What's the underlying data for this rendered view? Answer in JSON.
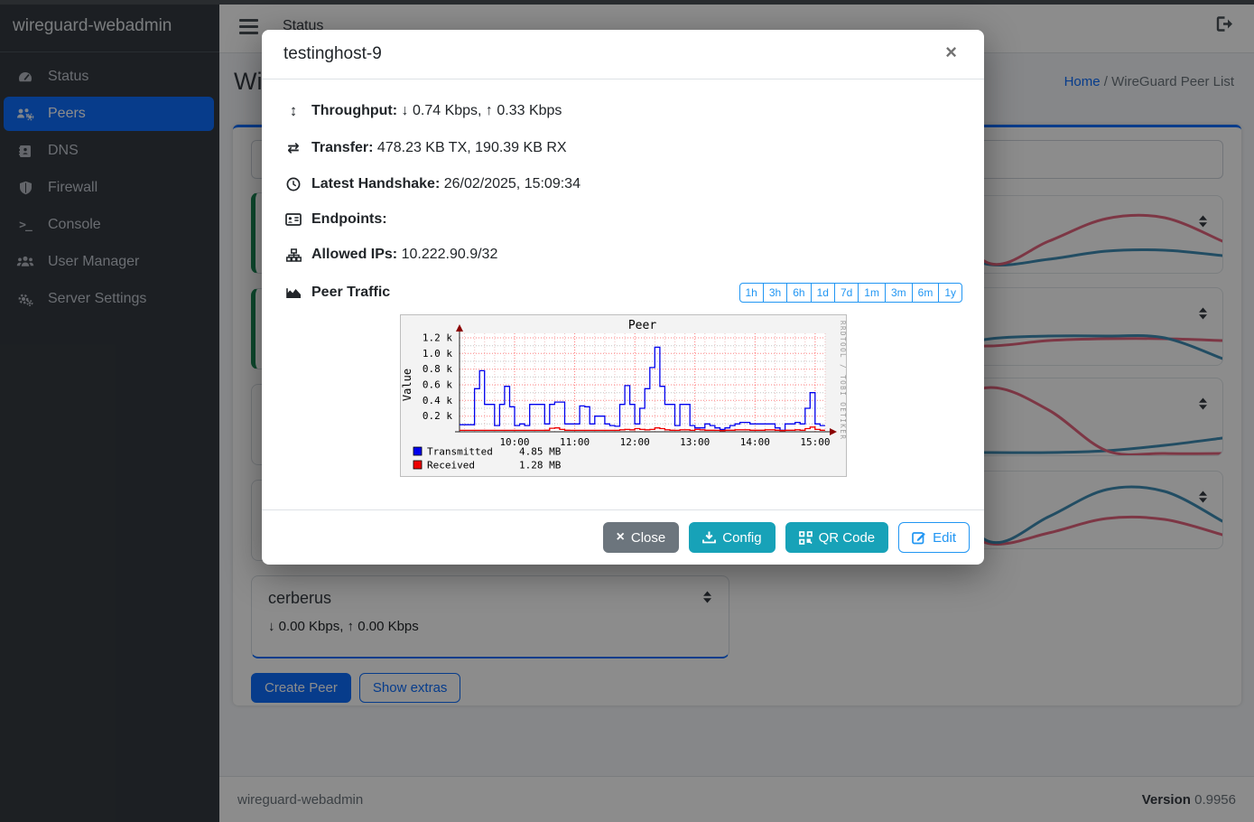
{
  "sidebar": {
    "brand": "wireguard-webadmin",
    "items": [
      {
        "label": "Status",
        "icon": "gauge-icon",
        "active": false
      },
      {
        "label": "Peers",
        "icon": "users-gear-icon",
        "active": true
      },
      {
        "label": "DNS",
        "icon": "address-book-icon",
        "active": false
      },
      {
        "label": "Firewall",
        "icon": "shield-icon",
        "active": false
      },
      {
        "label": "Console",
        "icon": "terminal-icon",
        "active": false
      },
      {
        "label": "User Manager",
        "icon": "users-icon",
        "active": false
      },
      {
        "label": "Server Settings",
        "icon": "gears-icon",
        "active": false
      }
    ]
  },
  "navbar": {
    "menu_item": "Status"
  },
  "page_header": {
    "title": "WireGuard Peers",
    "breadcrumb_home": "Home",
    "breadcrumb_sep": "/",
    "breadcrumb_current": "WireGuard Peer List"
  },
  "peer_list": {
    "cerberus_name": "cerberus",
    "cerberus_throughput": "↓ 0.00 Kbps, ↑ 0.00 Kbps",
    "create_peer_label": "Create Peer",
    "show_extras_label": "Show extras"
  },
  "modal": {
    "title": "testinghost-9",
    "close_glyph": "×",
    "info_rows": [
      {
        "icon": "arrows-up-down-icon",
        "label": "Throughput:",
        "value": "↓ 0.74 Kbps, ↑ 0.33 Kbps"
      },
      {
        "icon": "transfer-icon",
        "label": "Transfer:",
        "value": "478.23 KB TX, 190.39 KB RX"
      },
      {
        "icon": "clock-icon",
        "label": "Latest Handshake:",
        "value": "26/02/2025, 15:09:34"
      },
      {
        "icon": "address-card-icon",
        "label": "Endpoints:",
        "value": ""
      },
      {
        "icon": "sitemap-icon",
        "label": "Allowed IPs:",
        "value": "10.222.90.9/32"
      }
    ],
    "traffic_label": "Peer Traffic",
    "traffic_icon": "chart-area-icon",
    "time_range_buttons": [
      "1h",
      "3h",
      "6h",
      "1d",
      "7d",
      "1m",
      "3m",
      "6m",
      "1y"
    ],
    "footer_buttons": [
      {
        "label": "Close",
        "icon": "x-icon",
        "variant": "secondary"
      },
      {
        "label": "Config",
        "icon": "download-icon",
        "variant": "info"
      },
      {
        "label": "QR Code",
        "icon": "qrcode-icon",
        "variant": "info"
      },
      {
        "label": "Edit",
        "icon": "edit-icon",
        "variant": "outline-bright"
      }
    ]
  },
  "footer": {
    "app_name": "wireguard-webadmin",
    "version_label": "Version",
    "version_value": "0.9956"
  },
  "colors": {
    "primary": "#0d6efd",
    "info_teal": "#17a2b8",
    "secondary": "#6c757d",
    "success_green": "#198754",
    "time_button_blue": "#2196f3",
    "rrd_blue": "#0000ee",
    "rrd_red": "#ee0000",
    "spark_red": "#e4657f",
    "spark_blue": "#3f8cb5"
  },
  "chart_data": [
    {
      "type": "line",
      "context": "rrdtool-peer-traffic-graph",
      "title": "Peer",
      "ylabel": "Value",
      "watermark": "RRDTOOL / TOBI OETIKER",
      "grid": true,
      "legend_position": "bottom-left",
      "x_axis": {
        "start_hour": 9.083,
        "end_hour": 15.167,
        "ticks": [
          {
            "label": "10:00",
            "hour": 10
          },
          {
            "label": "11:00",
            "hour": 11
          },
          {
            "label": "12:00",
            "hour": 12
          },
          {
            "label": "13:00",
            "hour": 13
          },
          {
            "label": "14:00",
            "hour": 14
          },
          {
            "label": "15:00",
            "hour": 15
          }
        ]
      },
      "y_axis": {
        "axis_max": 1.2,
        "tick_step": 0.2,
        "unit": "k",
        "tick_labels": [
          "0.2 k",
          "0.4 k",
          "0.6 k",
          "0.8 k",
          "1.0 k",
          "1.2 k"
        ]
      },
      "series": [
        {
          "name": "Transmitted",
          "color": "#0000ee",
          "legend_value": "4.85 MB",
          "start_hour": 9.083,
          "step_hours": 0.08333,
          "values": [
            0.09,
            0.09,
            0.09,
            0.55,
            0.78,
            0.35,
            0.35,
            0.08,
            0.35,
            0.58,
            0.32,
            0.08,
            0.1,
            0.08,
            0.35,
            0.35,
            0.35,
            0.1,
            0.35,
            0.38,
            0.38,
            0.1,
            0.1,
            0.1,
            0.33,
            0.32,
            0.1,
            0.2,
            0.2,
            0.1,
            0.08,
            0.07,
            0.35,
            0.59,
            0.35,
            0.1,
            0.3,
            0.55,
            0.82,
            1.08,
            0.58,
            0.35,
            0.35,
            0.08,
            0.35,
            0.35,
            0.08,
            0.05,
            0.05,
            0.1,
            0.08,
            0.05,
            0.03,
            0.05,
            0.08,
            0.1,
            0.12,
            0.12,
            0.1,
            0.1,
            0.1,
            0.1,
            0.1,
            0.05,
            0.02,
            0.1,
            0.1,
            0.12,
            0.1,
            0.3,
            0.5,
            0.1,
            0.08
          ]
        },
        {
          "name": "Received",
          "color": "#ee0000",
          "legend_value": "1.28 MB",
          "start_hour": 9.083,
          "step_hours": 0.08333,
          "values": [
            0.018,
            0.018,
            0.018,
            0.018,
            0.018,
            0.018,
            0.018,
            0.018,
            0.018,
            0.018,
            0.018,
            0.018,
            0.018,
            0.018,
            0.018,
            0.018,
            0.018,
            0.02,
            0.045,
            0.05,
            0.03,
            0.02,
            0.018,
            0.018,
            0.018,
            0.018,
            0.018,
            0.018,
            0.018,
            0.018,
            0.018,
            0.018,
            0.025,
            0.03,
            0.025,
            0.04,
            0.03,
            0.025,
            0.03,
            0.05,
            0.04,
            0.025,
            0.02,
            0.018,
            0.025,
            0.025,
            0.018,
            0.03,
            0.025,
            0.02,
            0.02,
            0.018,
            0.015,
            0.02,
            0.02,
            0.025,
            0.025,
            0.025,
            0.02,
            0.02,
            0.02,
            0.025,
            0.025,
            0.02,
            0.015,
            0.02,
            0.02,
            0.025,
            0.02,
            0.04,
            0.06,
            0.03,
            0.02
          ]
        }
      ],
      "legend": [
        {
          "swatch": "#0000ee",
          "name": "Transmitted",
          "value": "4.85 MB"
        },
        {
          "swatch": "#ee0000",
          "name": "Received",
          "value": "1.28 MB"
        }
      ]
    },
    {
      "type": "line",
      "context": "peer-card-sparkline-1",
      "series": [
        {
          "name": "series-blue",
          "color": "#3f8cb5",
          "y_points": [
            80,
            70,
            58,
            57,
            76,
            70,
            61,
            60,
            66
          ]
        },
        {
          "name": "series-red",
          "color": "#e4657f",
          "y_points": [
            72,
            40,
            14,
            20,
            75,
            50,
            25,
            24,
            50
          ]
        }
      ]
    },
    {
      "type": "line",
      "context": "peer-card-sparkline-2",
      "series": [
        {
          "name": "series-red",
          "color": "#e4657f",
          "y_points": [
            45,
            18,
            35,
            60,
            64,
            58,
            56,
            56,
            58
          ]
        },
        {
          "name": "series-blue",
          "color": "#3f8cb5",
          "y_points": [
            48,
            62,
            74,
            68,
            56,
            53,
            53,
            55,
            78
          ]
        }
      ]
    },
    {
      "type": "line",
      "context": "peer-card-sparkline-3",
      "series": [
        {
          "name": "series-blue",
          "color": "#3f8cb5",
          "y_points": [
            82,
            82,
            82,
            82,
            82,
            82,
            80,
            74,
            66
          ]
        },
        {
          "name": "series-red",
          "color": "#e4657f",
          "y_points": [
            83,
            83,
            78,
            35,
            10,
            35,
            80,
            83,
            83
          ]
        }
      ]
    },
    {
      "type": "line",
      "context": "peer-card-sparkline-4",
      "series": [
        {
          "name": "series-red",
          "color": "#e4657f",
          "y_points": [
            80,
            62,
            48,
            52,
            80,
            68,
            52,
            53,
            70
          ]
        },
        {
          "name": "series-blue",
          "color": "#3f8cb5",
          "y_points": [
            75,
            40,
            13,
            20,
            78,
            50,
            20,
            22,
            55
          ]
        }
      ]
    }
  ]
}
